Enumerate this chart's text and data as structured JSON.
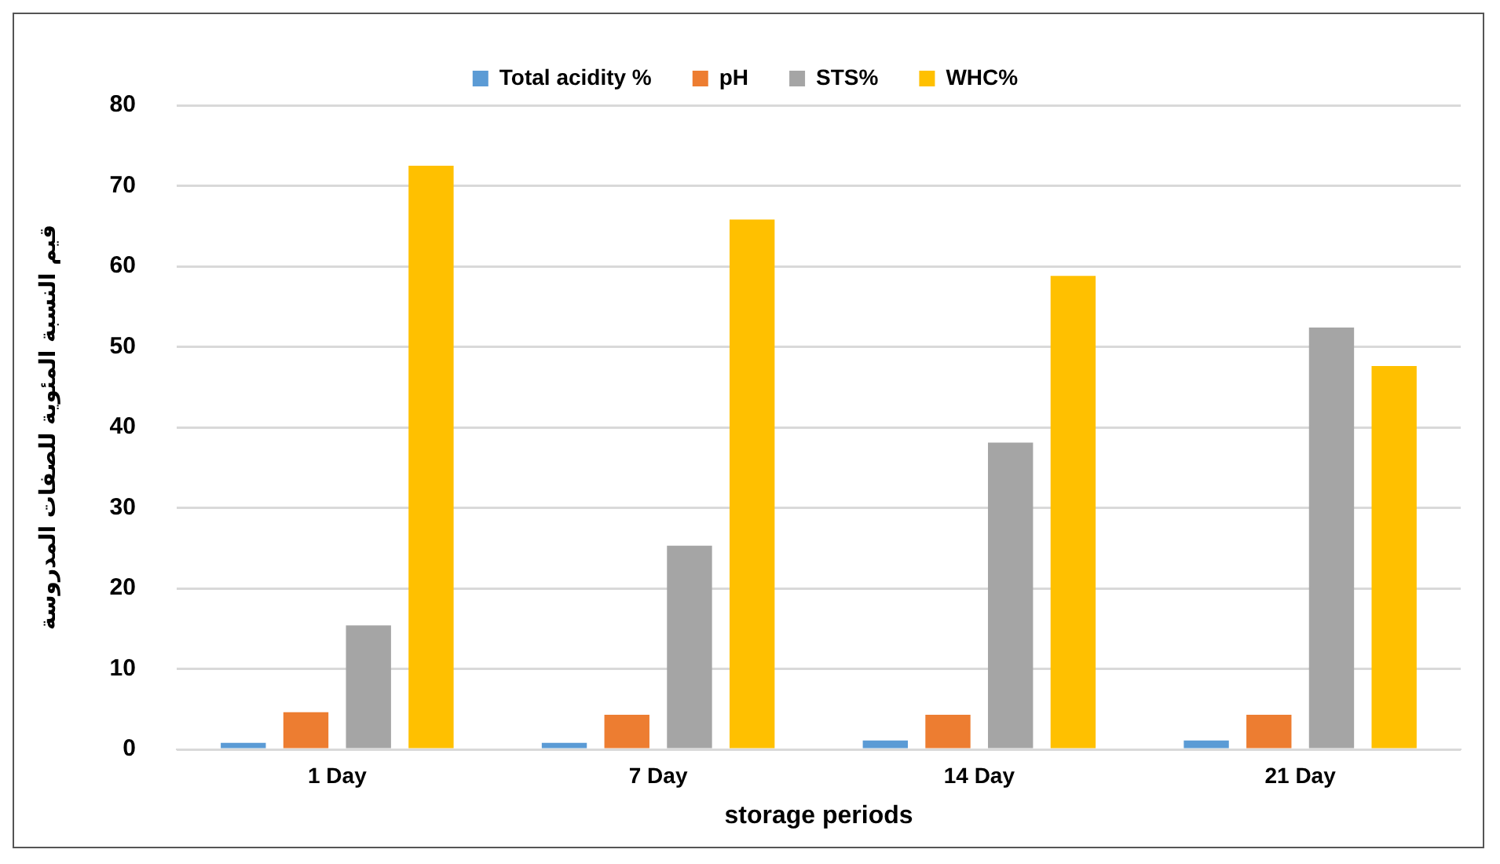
{
  "chart_data": {
    "type": "bar",
    "xlabel": "storage periods",
    "ylabel": "قيم النسبة المئوية للصفات المدروسة",
    "categories": [
      "1 Day",
      "7 Day",
      "14 Day",
      "21 Day"
    ],
    "series": [
      {
        "name": "Total acidity %",
        "color": "#5b9bd5",
        "values": [
          0.8,
          0.8,
          1.1,
          1.1
        ]
      },
      {
        "name": "pH",
        "color": "#ed7d31",
        "values": [
          4.6,
          4.3,
          4.3,
          4.3
        ]
      },
      {
        "name": "STS%",
        "color": "#a5a5a5",
        "values": [
          15.4,
          25.3,
          38.1,
          52.4
        ]
      },
      {
        "name": "WHC%",
        "color": "#ffc000",
        "values": [
          72.5,
          65.8,
          58.8,
          47.6
        ]
      }
    ],
    "ylim": [
      0,
      80
    ],
    "yticks": [
      0,
      10,
      20,
      30,
      40,
      50,
      60,
      70,
      80
    ],
    "grid": "y",
    "legend": "top"
  }
}
